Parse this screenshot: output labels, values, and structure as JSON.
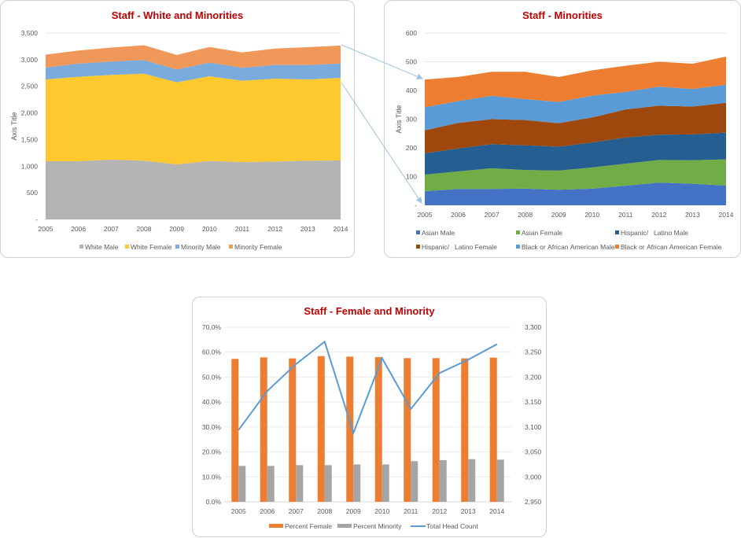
{
  "chart_data": [
    {
      "id": "white_minorities",
      "type": "area",
      "stacked": true,
      "title": "Staff - White and Minorities",
      "xlabel": "",
      "ylabel": "Axis Title",
      "ylim": [
        0,
        3500
      ],
      "yticks": [
        0,
        500,
        1000,
        1500,
        2000,
        2500,
        3000,
        3500
      ],
      "ytick_labels": [
        "-",
        "500",
        "1,000",
        "1,500",
        "2,000",
        "2,500",
        "3,000",
        "3,500"
      ],
      "grid": true,
      "legend": "bottom",
      "categories": [
        "2005",
        "2006",
        "2007",
        "2008",
        "2009",
        "2010",
        "2011",
        "2012",
        "2013",
        "2014"
      ],
      "series": [
        {
          "name": "White Male",
          "color": "#b4b4b4",
          "values": [
            1093,
            1093,
            1123,
            1103,
            1034,
            1098,
            1078,
            1088,
            1103,
            1108
          ]
        },
        {
          "name": "White Female",
          "color": "#fdc92f",
          "values": [
            1536,
            1585,
            1590,
            1634,
            1541,
            1590,
            1527,
            1556,
            1526,
            1551
          ]
        },
        {
          "name": "Minority Male",
          "color": "#79acdc",
          "values": [
            222,
            247,
            251,
            256,
            241,
            256,
            241,
            256,
            271,
            266
          ]
        },
        {
          "name": "Minority Female",
          "color": "#f0975a",
          "values": [
            243,
            247,
            262,
            278,
            272,
            294,
            290,
            308,
            335,
            341
          ]
        }
      ]
    },
    {
      "id": "minorities",
      "type": "area",
      "stacked": true,
      "title": "Staff - Minorities",
      "xlabel": "",
      "ylabel": "Axis Title",
      "ylim": [
        0,
        600
      ],
      "yticks": [
        0,
        100,
        200,
        300,
        400,
        500,
        600
      ],
      "ytick_labels": [
        "-",
        "100",
        "200",
        "300",
        "400",
        "500",
        "600"
      ],
      "grid": true,
      "legend": "bottom",
      "categories": [
        "2005",
        "2006",
        "2007",
        "2008",
        "2009",
        "2010",
        "2011",
        "2012",
        "2013",
        "2014"
      ],
      "series": [
        {
          "name": "Asian Male",
          "color": "#4472c4",
          "values": [
            49,
            57,
            57,
            58,
            54,
            58,
            68,
            79,
            75,
            69
          ]
        },
        {
          "name": "Asian Female",
          "color": "#70ad47",
          "values": [
            58,
            61,
            72,
            65,
            67,
            74,
            77,
            79,
            82,
            91
          ]
        },
        {
          "name": "Hispanic/   Latino Male",
          "color": "#255e91",
          "values": [
            74,
            80,
            84,
            86,
            83,
            87,
            91,
            88,
            90,
            93
          ]
        },
        {
          "name": "Hispanic/   Latino Female",
          "color": "#9e480e",
          "values": [
            80,
            89,
            87,
            88,
            82,
            87,
            98,
            101,
            97,
            104
          ]
        },
        {
          "name": "Black or African American Male",
          "color": "#5b9bd5",
          "values": [
            80,
            76,
            81,
            73,
            74,
            76,
            61,
            66,
            61,
            63
          ]
        },
        {
          "name": "Black or African American Female",
          "color": "#ed7d31",
          "values": [
            97,
            84,
            84,
            95,
            87,
            88,
            91,
            87,
            88,
            98
          ]
        }
      ]
    },
    {
      "id": "female_minority",
      "type": "bar",
      "title": "Staff - Female and Minority",
      "xlabel": "",
      "ylabel": "",
      "ylim": [
        0,
        70
      ],
      "yticks": [
        0,
        10,
        20,
        30,
        40,
        50,
        60,
        70
      ],
      "ytick_labels": [
        "0.0%",
        "10.0%",
        "20.0%",
        "30.0%",
        "40.0%",
        "50.0%",
        "60.0%",
        "70.0%"
      ],
      "y2lim": [
        2950,
        3300
      ],
      "y2ticks": [
        2950,
        3000,
        3050,
        3100,
        3150,
        3200,
        3250,
        3300
      ],
      "y2tick_labels": [
        "2,950",
        "3,000",
        "3,050",
        "3,100",
        "3,150",
        "3,200",
        "3,250",
        "3,300"
      ],
      "grid": true,
      "legend": "bottom",
      "categories": [
        "2005",
        "2006",
        "2007",
        "2008",
        "2009",
        "2010",
        "2011",
        "2012",
        "2013",
        "2014"
      ],
      "series": [
        {
          "name": "Percent Female",
          "type": "bar",
          "axis": "left",
          "color": "#ed7d31",
          "values": [
            57.3,
            57.9,
            57.5,
            58.4,
            58.2,
            58.0,
            57.6,
            57.6,
            57.5,
            57.8
          ]
        },
        {
          "name": "Percent Minority",
          "type": "bar",
          "axis": "left",
          "color": "#a5a5a5",
          "values": [
            14.4,
            14.4,
            14.7,
            14.7,
            15.0,
            15.0,
            16.3,
            16.7,
            17.1,
            16.9
          ]
        },
        {
          "name": "Total Head Count",
          "type": "line",
          "axis": "right",
          "color": "#5b9bd5",
          "values": [
            3094,
            3172,
            3226,
            3271,
            3088,
            3238,
            3136,
            3208,
            3235,
            3266
          ]
        }
      ]
    }
  ]
}
